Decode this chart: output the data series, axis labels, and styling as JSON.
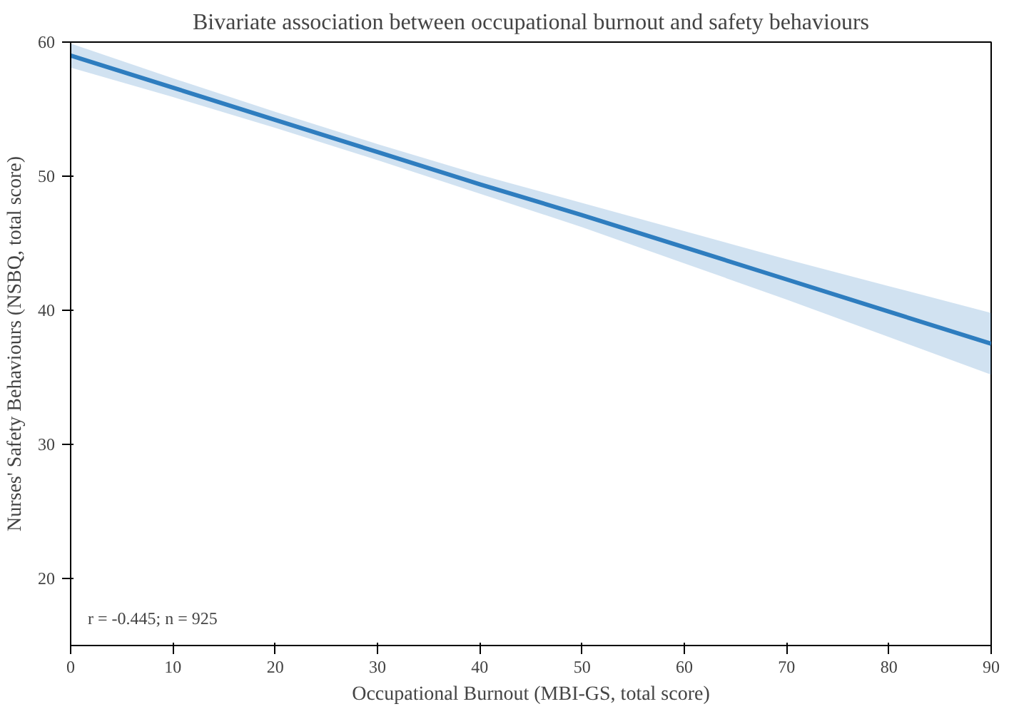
{
  "chart_data": {
    "type": "line",
    "title": "Bivariate association between occupational burnout and safety behaviours",
    "xlabel": "Occupational Burnout (MBI-GS, total score)",
    "ylabel": "Nurses' Safety Behaviours (NSBQ, total score)",
    "x": [
      0,
      10,
      20,
      30,
      40,
      50,
      60,
      70,
      80,
      90
    ],
    "series": [
      {
        "color": "#2e7dbf",
        "values": [
          59.0,
          56.6,
          54.2,
          51.8,
          49.4,
          47.1,
          44.7,
          42.3,
          39.9,
          37.5
        ],
        "lower": [
          58.1,
          55.9,
          53.6,
          51.2,
          48.7,
          46.2,
          43.5,
          40.8,
          38.0,
          35.2
        ],
        "upper": [
          59.9,
          57.3,
          54.8,
          52.4,
          50.1,
          48.0,
          45.9,
          43.8,
          41.8,
          39.8
        ]
      }
    ],
    "xlim": [
      0,
      90
    ],
    "ylim": [
      15,
      60
    ],
    "xticks": [
      0,
      10,
      20,
      30,
      40,
      50,
      60,
      70,
      80,
      90
    ],
    "yticks": [
      20,
      30,
      40,
      50,
      60
    ],
    "grid": false,
    "line_style": "solid",
    "marker": "none",
    "annotations": [
      "r = -0.445; n = 925"
    ]
  }
}
